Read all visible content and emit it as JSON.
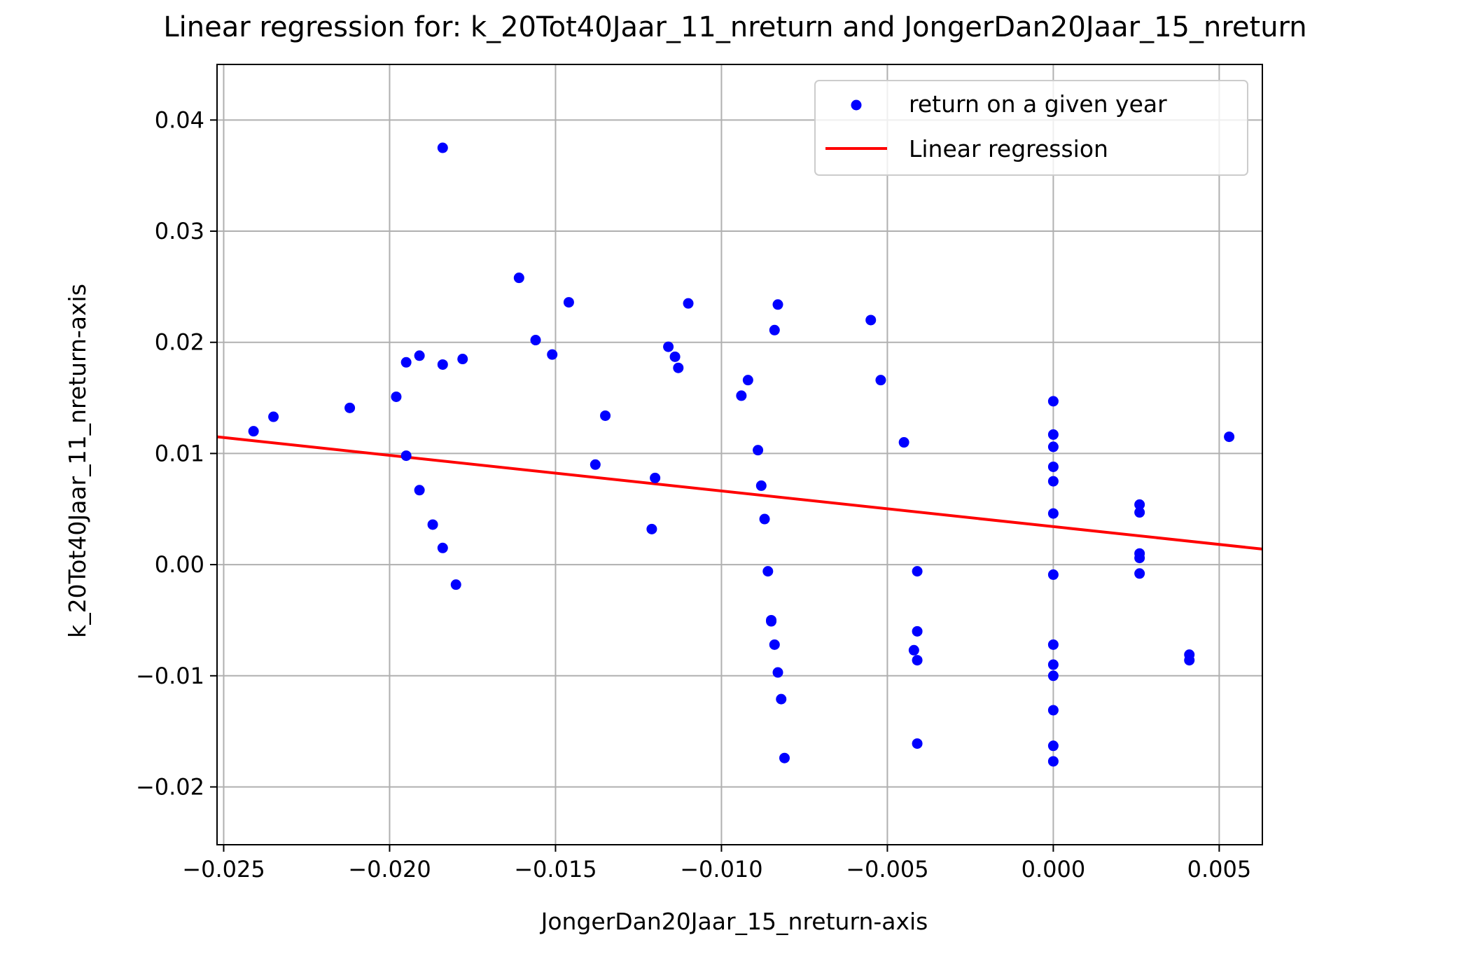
{
  "chart_data": {
    "type": "scatter",
    "title": "Linear regression for: k_20Tot40Jaar_11_nreturn and JongerDan20Jaar_15_nreturn",
    "xlabel": "JongerDan20Jaar_15_nreturn-axis",
    "ylabel": "k_20Tot40Jaar_11_nreturn-axis",
    "xlim": [
      -0.0252,
      0.0063
    ],
    "ylim": [
      -0.0252,
      0.045
    ],
    "x_ticks": [
      -0.025,
      -0.02,
      -0.015,
      -0.01,
      -0.005,
      0.0,
      0.005
    ],
    "x_tick_labels": [
      "−0.025",
      "−0.020",
      "−0.015",
      "−0.010",
      "−0.005",
      "0.000",
      "0.005"
    ],
    "y_ticks": [
      -0.02,
      -0.01,
      0.0,
      0.01,
      0.02,
      0.03,
      0.04
    ],
    "y_tick_labels": [
      "−0.02",
      "−0.01",
      "0.00",
      "0.01",
      "0.02",
      "0.03",
      "0.04"
    ],
    "grid": true,
    "legend_position": "top-right",
    "series": [
      {
        "name": "return on a given year",
        "kind": "scatter",
        "color": "#0000ff",
        "points": [
          [
            -0.0241,
            0.012
          ],
          [
            -0.0235,
            0.0133
          ],
          [
            -0.0212,
            0.0141
          ],
          [
            -0.0198,
            0.0151
          ],
          [
            -0.0195,
            0.0182
          ],
          [
            -0.0195,
            0.0098
          ],
          [
            -0.0191,
            0.0188
          ],
          [
            -0.0191,
            0.0067
          ],
          [
            -0.0187,
            0.0036
          ],
          [
            -0.0184,
            0.018
          ],
          [
            -0.0184,
            0.0015
          ],
          [
            -0.0184,
            0.0375
          ],
          [
            -0.018,
            -0.0018
          ],
          [
            -0.0178,
            0.0185
          ],
          [
            -0.0161,
            0.0258
          ],
          [
            -0.0156,
            0.0202
          ],
          [
            -0.0151,
            0.0189
          ],
          [
            -0.0146,
            0.0236
          ],
          [
            -0.0138,
            0.009
          ],
          [
            -0.0135,
            0.0134
          ],
          [
            -0.0121,
            0.0032
          ],
          [
            -0.012,
            0.0078
          ],
          [
            -0.0116,
            0.0196
          ],
          [
            -0.0114,
            0.0187
          ],
          [
            -0.0113,
            0.0177
          ],
          [
            -0.011,
            0.0235
          ],
          [
            -0.0094,
            0.0152
          ],
          [
            -0.0092,
            0.0166
          ],
          [
            -0.0089,
            0.0103
          ],
          [
            -0.0088,
            0.0071
          ],
          [
            -0.0087,
            0.0041
          ],
          [
            -0.0086,
            -0.0006
          ],
          [
            -0.0085,
            -0.0051
          ],
          [
            -0.0085,
            -0.005
          ],
          [
            -0.0084,
            -0.0072
          ],
          [
            -0.0084,
            0.0211
          ],
          [
            -0.0083,
            -0.0097
          ],
          [
            -0.0083,
            0.0234
          ],
          [
            -0.0082,
            -0.0121
          ],
          [
            -0.0081,
            -0.0174
          ],
          [
            -0.0055,
            0.022
          ],
          [
            -0.0052,
            0.0166
          ],
          [
            -0.0045,
            0.011
          ],
          [
            -0.0042,
            -0.0077
          ],
          [
            -0.0041,
            -0.0086
          ],
          [
            -0.0041,
            -0.0161
          ],
          [
            -0.0041,
            -0.0006
          ],
          [
            -0.0041,
            -0.006
          ],
          [
            0.0,
            0.0147
          ],
          [
            0.0,
            0.0117
          ],
          [
            0.0,
            0.0106
          ],
          [
            0.0,
            0.0088
          ],
          [
            0.0,
            0.0075
          ],
          [
            0.0,
            0.0046
          ],
          [
            0.0,
            -0.0009
          ],
          [
            0.0,
            -0.0072
          ],
          [
            0.0,
            -0.009
          ],
          [
            0.0,
            -0.01
          ],
          [
            0.0,
            -0.0131
          ],
          [
            0.0,
            -0.0163
          ],
          [
            0.0,
            -0.0177
          ],
          [
            0.0026,
            0.0054
          ],
          [
            0.0026,
            0.0047
          ],
          [
            0.0026,
            0.001
          ],
          [
            0.0026,
            0.0006
          ],
          [
            0.0026,
            -0.0008
          ],
          [
            0.0041,
            -0.0081
          ],
          [
            0.0041,
            -0.0086
          ],
          [
            0.0053,
            0.0115
          ]
        ]
      },
      {
        "name": "Linear regression",
        "kind": "line",
        "color": "#ff0000",
        "points": [
          [
            -0.0252,
            0.0115
          ],
          [
            0.0063,
            0.0014
          ]
        ]
      }
    ]
  }
}
